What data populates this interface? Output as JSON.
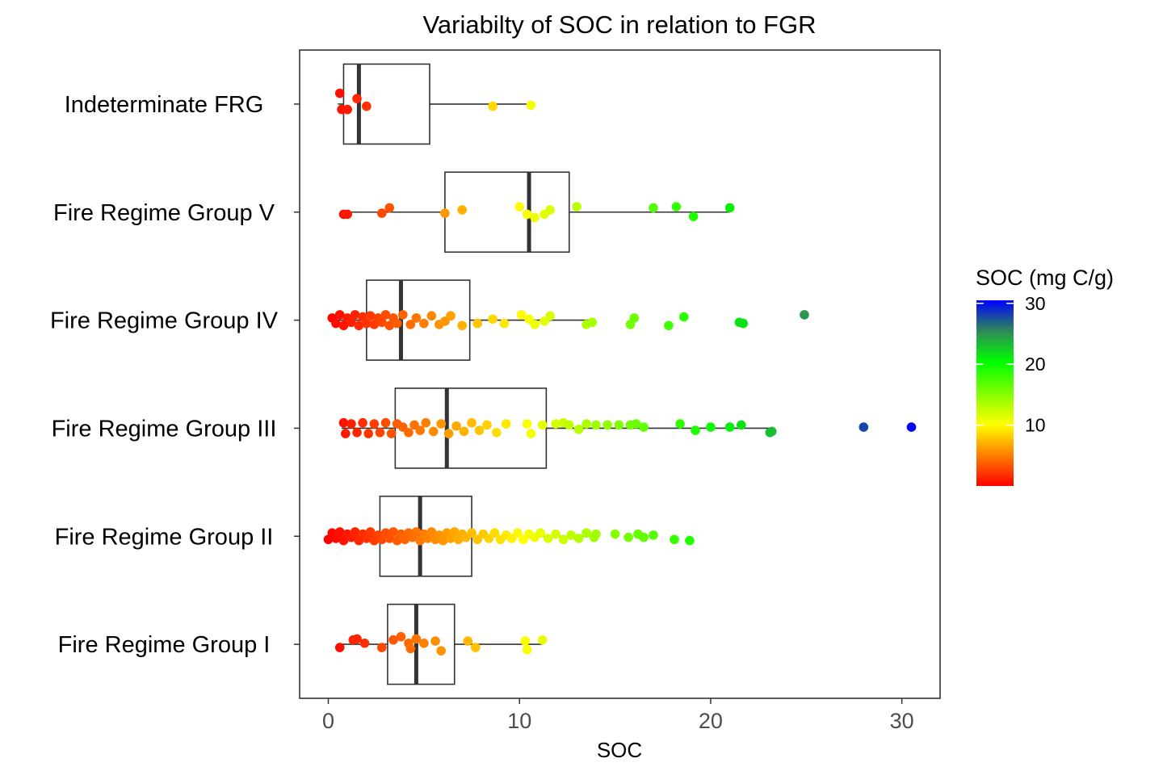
{
  "chart_data": {
    "type": "boxplot",
    "title": "Variabilty of SOC in relation to FGR",
    "xlabel": "SOC",
    "ylabel": "",
    "xlim": [
      -1.5,
      32
    ],
    "x_ticks": [
      0,
      10,
      20,
      30
    ],
    "grid": false,
    "orientation": "horizontal",
    "legend": {
      "title": "SOC (mg C/g)",
      "placement": "right",
      "ticks": [
        10,
        20,
        30
      ],
      "range": [
        0,
        30.5
      ],
      "colors": [
        "#ff0000",
        "#ff8000",
        "#ffff00",
        "#80ff00",
        "#00ff00",
        "#2e8b57",
        "#0000ff"
      ]
    },
    "categories": [
      "Indeterminate FRG",
      "Fire Regime Group V",
      "Fire Regime Group IV",
      "Fire Regime Group III",
      "Fire Regime Group II",
      "Fire Regime Group I"
    ],
    "boxes": [
      {
        "name": "Indeterminate FRG",
        "min": 0.5,
        "q1": 0.8,
        "median": 1.6,
        "q3": 5.3,
        "max": 10.6
      },
      {
        "name": "Fire Regime Group V",
        "min": 0.7,
        "q1": 6.1,
        "median": 10.5,
        "q3": 12.6,
        "max": 21.0
      },
      {
        "name": "Fire Regime Group IV",
        "min": 0.1,
        "q1": 2.0,
        "median": 3.8,
        "q3": 7.4,
        "max": 13.8
      },
      {
        "name": "Fire Regime Group III",
        "min": 0.7,
        "q1": 3.5,
        "median": 6.2,
        "q3": 11.4,
        "max": 23.2
      },
      {
        "name": "Fire Regime Group II",
        "min": 0.0,
        "q1": 2.7,
        "median": 4.8,
        "q3": 7.5,
        "max": 14.0
      },
      {
        "name": "Fire Regime Group I",
        "min": 0.5,
        "q1": 3.1,
        "median": 4.6,
        "q3": 6.6,
        "max": 11.2
      }
    ],
    "points": [
      [
        [
          0.6,
          0.1
        ],
        [
          0.7,
          -0.05
        ],
        [
          1.0,
          -0.05
        ],
        [
          1.5,
          0.05
        ],
        [
          2.0,
          -0.02
        ],
        [
          8.6,
          -0.02
        ],
        [
          10.6,
          -0.01
        ]
      ],
      [
        [
          0.8,
          -0.02
        ],
        [
          1.0,
          -0.02
        ],
        [
          2.8,
          -0.01
        ],
        [
          3.2,
          0.04
        ],
        [
          6.1,
          -0.01
        ],
        [
          7.0,
          0.02
        ],
        [
          10.0,
          0.05
        ],
        [
          10.4,
          -0.02
        ],
        [
          10.8,
          -0.05
        ],
        [
          11.3,
          -0.02
        ],
        [
          11.6,
          0.02
        ],
        [
          13.0,
          0.05
        ],
        [
          17.0,
          0.04
        ],
        [
          18.2,
          0.05
        ],
        [
          19.1,
          -0.04
        ],
        [
          21.0,
          0.04
        ]
      ],
      [
        [
          0.2,
          0.02
        ],
        [
          0.4,
          -0.03
        ],
        [
          0.6,
          0.05
        ],
        [
          0.8,
          -0.05
        ],
        [
          1.0,
          0.02
        ],
        [
          1.2,
          -0.02
        ],
        [
          1.4,
          0.05
        ],
        [
          1.6,
          -0.05
        ],
        [
          1.8,
          0.03
        ],
        [
          2.0,
          -0.03
        ],
        [
          2.2,
          0.04
        ],
        [
          2.4,
          -0.04
        ],
        [
          2.6,
          0.02
        ],
        [
          2.8,
          -0.02
        ],
        [
          3.0,
          0.05
        ],
        [
          3.2,
          -0.05
        ],
        [
          3.4,
          0.02
        ],
        [
          3.6,
          -0.03
        ],
        [
          3.9,
          0.05
        ],
        [
          4.3,
          -0.04
        ],
        [
          4.6,
          0.02
        ],
        [
          5.0,
          -0.03
        ],
        [
          5.4,
          0.04
        ],
        [
          5.8,
          -0.04
        ],
        [
          6.4,
          0.04
        ],
        [
          6.1,
          -0.01
        ],
        [
          7.0,
          -0.05
        ],
        [
          7.8,
          -0.03
        ],
        [
          8.6,
          0.01
        ],
        [
          9.2,
          -0.03
        ],
        [
          10.1,
          0.05
        ],
        [
          10.5,
          0.01
        ],
        [
          10.8,
          -0.04
        ],
        [
          11.3,
          -0.01
        ],
        [
          11.6,
          0.04
        ],
        [
          13.5,
          -0.04
        ],
        [
          13.8,
          -0.02
        ],
        [
          15.8,
          -0.04
        ],
        [
          16.0,
          0.02
        ],
        [
          17.8,
          -0.05
        ],
        [
          18.6,
          0.03
        ],
        [
          21.5,
          -0.02
        ],
        [
          21.7,
          -0.03
        ],
        [
          24.9,
          0.05
        ]
      ],
      [
        [
          0.8,
          0.05
        ],
        [
          0.9,
          -0.05
        ],
        [
          1.2,
          0.04
        ],
        [
          1.5,
          -0.04
        ],
        [
          1.8,
          0.05
        ],
        [
          2.1,
          -0.05
        ],
        [
          2.4,
          0.04
        ],
        [
          2.7,
          -0.04
        ],
        [
          3.0,
          0.05
        ],
        [
          3.3,
          -0.05
        ],
        [
          3.6,
          0.04
        ],
        [
          3.9,
          0.01
        ],
        [
          4.2,
          -0.04
        ],
        [
          4.5,
          0.03
        ],
        [
          4.8,
          -0.02
        ],
        [
          5.1,
          0.05
        ],
        [
          5.5,
          -0.03
        ],
        [
          5.9,
          0.04
        ],
        [
          6.3,
          -0.05
        ],
        [
          6.7,
          0.02
        ],
        [
          7.1,
          -0.03
        ],
        [
          7.5,
          0.05
        ],
        [
          7.9,
          -0.02
        ],
        [
          8.3,
          0.03
        ],
        [
          8.8,
          -0.04
        ],
        [
          9.3,
          0.04
        ],
        [
          10.4,
          0.04
        ],
        [
          10.6,
          -0.05
        ],
        [
          11.2,
          0.03
        ],
        [
          11.9,
          0.04
        ],
        [
          12.3,
          0.05
        ],
        [
          12.6,
          0.03
        ],
        [
          13.1,
          -0.01
        ],
        [
          13.5,
          0.04
        ],
        [
          14.0,
          0.03
        ],
        [
          14.6,
          0.03
        ],
        [
          15.2,
          0.03
        ],
        [
          15.8,
          0.03
        ],
        [
          16.1,
          0.04
        ],
        [
          16.5,
          0.01
        ],
        [
          18.4,
          0.04
        ],
        [
          19.2,
          -0.02
        ],
        [
          20.0,
          0.01
        ],
        [
          21.0,
          0.01
        ],
        [
          21.6,
          0.03
        ],
        [
          23.1,
          -0.04
        ],
        [
          23.2,
          -0.03
        ],
        [
          28.0,
          0.01
        ],
        [
          30.5,
          0.01
        ]
      ],
      [
        [
          0.0,
          -0.03
        ],
        [
          0.2,
          0.03
        ],
        [
          0.4,
          -0.02
        ],
        [
          0.6,
          0.04
        ],
        [
          0.8,
          -0.04
        ],
        [
          1.0,
          0.02
        ],
        [
          1.2,
          -0.01
        ],
        [
          1.4,
          0.04
        ],
        [
          1.6,
          -0.04
        ],
        [
          1.8,
          0.02
        ],
        [
          2.0,
          -0.02
        ],
        [
          2.2,
          0.04
        ],
        [
          2.4,
          -0.04
        ],
        [
          2.6,
          0.01
        ],
        [
          2.8,
          -0.03
        ],
        [
          3.0,
          0.03
        ],
        [
          3.2,
          -0.02
        ],
        [
          3.4,
          0.04
        ],
        [
          3.6,
          -0.04
        ],
        [
          3.8,
          0.02
        ],
        [
          4.0,
          -0.03
        ],
        [
          4.2,
          0.03
        ],
        [
          4.4,
          -0.01
        ],
        [
          4.6,
          0.04
        ],
        [
          4.8,
          -0.04
        ],
        [
          5.0,
          0.02
        ],
        [
          5.2,
          -0.02
        ],
        [
          5.4,
          0.04
        ],
        [
          5.6,
          -0.03
        ],
        [
          5.8,
          0.01
        ],
        [
          6.0,
          -0.04
        ],
        [
          6.2,
          0.03
        ],
        [
          6.4,
          -0.02
        ],
        [
          6.6,
          0.04
        ],
        [
          6.8,
          -0.03
        ],
        [
          7.0,
          0.02
        ],
        [
          7.2,
          -0.01
        ],
        [
          7.5,
          0.03
        ],
        [
          7.8,
          -0.03
        ],
        [
          8.1,
          0.02
        ],
        [
          8.4,
          -0.02
        ],
        [
          8.7,
          0.03
        ],
        [
          9.0,
          -0.03
        ],
        [
          9.3,
          0.01
        ],
        [
          9.6,
          -0.02
        ],
        [
          9.9,
          0.03
        ],
        [
          10.2,
          -0.03
        ],
        [
          10.5,
          0.02
        ],
        [
          10.8,
          -0.01
        ],
        [
          11.1,
          0.03
        ],
        [
          11.5,
          -0.02
        ],
        [
          11.9,
          0.02
        ],
        [
          12.3,
          -0.03
        ],
        [
          12.7,
          0.01
        ],
        [
          13.1,
          -0.02
        ],
        [
          13.5,
          0.03
        ],
        [
          13.9,
          -0.01
        ],
        [
          14.0,
          0.02
        ],
        [
          15.0,
          0.02
        ],
        [
          15.7,
          -0.01
        ],
        [
          16.2,
          0.02
        ],
        [
          16.5,
          -0.01
        ],
        [
          17.0,
          0.01
        ],
        [
          18.1,
          -0.03
        ],
        [
          18.9,
          -0.04
        ]
      ],
      [
        [
          0.6,
          -0.03
        ],
        [
          1.3,
          0.04
        ],
        [
          1.5,
          0.05
        ],
        [
          1.9,
          0.01
        ],
        [
          2.8,
          -0.03
        ],
        [
          3.4,
          0.04
        ],
        [
          3.8,
          0.07
        ],
        [
          4.2,
          0.01
        ],
        [
          4.3,
          -0.04
        ],
        [
          4.6,
          0.05
        ],
        [
          5.0,
          0.01
        ],
        [
          5.6,
          0.03
        ],
        [
          5.9,
          -0.06
        ],
        [
          7.3,
          0.03
        ],
        [
          7.7,
          -0.03
        ],
        [
          10.3,
          0.03
        ],
        [
          10.4,
          -0.05
        ],
        [
          11.2,
          0.04
        ]
      ]
    ]
  }
}
